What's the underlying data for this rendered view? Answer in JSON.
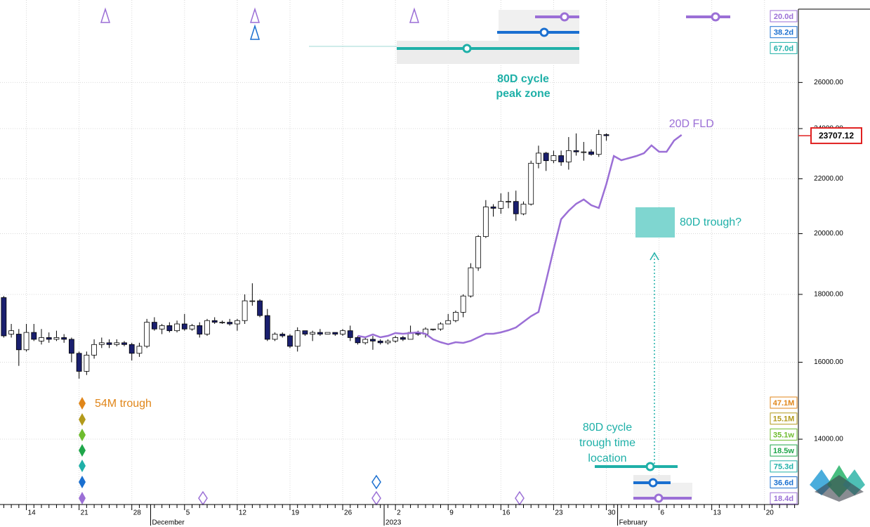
{
  "chart_data": {
    "type": "candlestick",
    "categories": [
      null,
      null,
      null,
      "14",
      null,
      null,
      null,
      null,
      null,
      null,
      "21",
      null,
      null,
      null,
      null,
      null,
      null,
      "28",
      null,
      null,
      null,
      null,
      null,
      null,
      "5",
      null,
      null,
      null,
      null,
      null,
      null,
      "12",
      null,
      null,
      null,
      null,
      null,
      null,
      "19",
      null,
      null,
      null,
      null,
      null,
      null,
      "26",
      null,
      null,
      null,
      null,
      null,
      null,
      "2",
      null,
      null,
      null,
      null,
      null,
      null,
      "9",
      null,
      null,
      null,
      null,
      null,
      null,
      "16",
      null,
      null,
      null,
      null,
      null,
      null,
      "23",
      null,
      null,
      null,
      null,
      null,
      null,
      "30",
      null,
      null,
      null,
      null,
      null,
      null,
      "6",
      null,
      null,
      null,
      null,
      null,
      null,
      "13",
      null,
      null,
      null,
      null,
      null,
      null,
      "20",
      null,
      null,
      null,
      null
    ],
    "period_labels": [
      null,
      null,
      null,
      null,
      null,
      null,
      null,
      null,
      null,
      null,
      null,
      null,
      null,
      null,
      null,
      null,
      null,
      null,
      null,
      null,
      "December",
      null,
      null,
      null,
      null,
      null,
      null,
      null,
      null,
      null,
      null,
      null,
      null,
      null,
      null,
      null,
      null,
      null,
      null,
      null,
      null,
      null,
      null,
      null,
      null,
      null,
      null,
      null,
      null,
      null,
      null,
      "2023",
      null,
      null,
      null,
      null,
      null,
      null,
      null,
      null,
      null,
      null,
      null,
      null,
      null,
      null,
      null,
      null,
      null,
      null,
      null,
      null,
      null,
      null,
      null,
      null,
      null,
      null,
      null,
      null,
      null,
      null,
      "February",
      null,
      null,
      null,
      null,
      null,
      null,
      null,
      null,
      null,
      null,
      null,
      null,
      null,
      null,
      null,
      null,
      null,
      null,
      null,
      null,
      null,
      null,
      null
    ],
    "open": [
      17900,
      16800,
      16800,
      16350,
      16850,
      16600,
      16700,
      16650,
      16700,
      16650,
      16250,
      15750,
      16200,
      16500,
      16550,
      16500,
      16550,
      16500,
      16250,
      16450,
      17150,
      16950,
      17050,
      16900,
      17100,
      16950,
      17050,
      16800,
      17200,
      17150,
      17150,
      17100,
      17200,
      17800,
      17800,
      17350,
      16650,
      16800,
      16750,
      16450,
      16900,
      16800,
      16850,
      16800,
      16850,
      16800,
      16900,
      16700,
      16550,
      16650,
      16600,
      16550,
      16600,
      16700,
      16650,
      16850,
      16800,
      16950,
      16950,
      17100,
      17200,
      17450,
      17950,
      18850,
      19900,
      20950,
      20900,
      21150,
      21150,
      20700,
      21050,
      22600,
      23000,
      22700,
      22900,
      22650,
      23100,
      23050,
      23050,
      22950,
      23750,
      null,
      null,
      null,
      null,
      null,
      null,
      null,
      null,
      null,
      null,
      null,
      null,
      null,
      null,
      null,
      null,
      null,
      null,
      null,
      null,
      null,
      null,
      null,
      null,
      null
    ],
    "high": [
      17950,
      17100,
      16950,
      17100,
      17100,
      16950,
      16850,
      16900,
      16800,
      16700,
      16300,
      16300,
      16650,
      16700,
      16650,
      16650,
      16600,
      16550,
      16550,
      17250,
      17300,
      17100,
      17150,
      17200,
      17400,
      17100,
      17150,
      17250,
      17300,
      17200,
      17250,
      17250,
      18000,
      18350,
      17850,
      17550,
      16850,
      16850,
      16800,
      17000,
      16900,
      16900,
      16950,
      16850,
      16850,
      16950,
      17050,
      16750,
      16700,
      16750,
      16650,
      16650,
      16750,
      16750,
      17050,
      16900,
      17000,
      16950,
      17150,
      17400,
      17500,
      18000,
      19000,
      19950,
      21200,
      21050,
      21450,
      21500,
      21550,
      21150,
      22700,
      23300,
      23050,
      23100,
      23100,
      23650,
      23800,
      23450,
      23150,
      23950,
      23800,
      null,
      null,
      null,
      null,
      null,
      null,
      null,
      null,
      null,
      null,
      null,
      null,
      null,
      null,
      null,
      null,
      null,
      null,
      null,
      null,
      null,
      null,
      null,
      null,
      null
    ],
    "low": [
      16700,
      16700,
      15900,
      16300,
      16600,
      16500,
      16550,
      16600,
      16550,
      16000,
      15550,
      15650,
      16100,
      16400,
      16400,
      16450,
      16450,
      16050,
      16150,
      16400,
      16900,
      16800,
      16850,
      16850,
      16900,
      16900,
      16700,
      16750,
      17100,
      17100,
      17050,
      16900,
      17100,
      17650,
      17300,
      16600,
      16600,
      16700,
      16400,
      16300,
      16750,
      16600,
      16750,
      16800,
      16750,
      16750,
      16600,
      16500,
      16500,
      16350,
      16500,
      16500,
      16550,
      16600,
      16650,
      16750,
      16700,
      16900,
      16900,
      17100,
      17150,
      17300,
      17900,
      18750,
      19850,
      20600,
      20700,
      20900,
      20450,
      20650,
      21000,
      22400,
      22300,
      22600,
      22500,
      22350,
      22900,
      22700,
      22900,
      22850,
      23500,
      null,
      null,
      null,
      null,
      null,
      null,
      null,
      null,
      null,
      null,
      null,
      null,
      null,
      null,
      null,
      null,
      null,
      null,
      null,
      null,
      null,
      null,
      null,
      null,
      null
    ],
    "close": [
      16750,
      16900,
      16350,
      16850,
      16650,
      16700,
      16650,
      16700,
      16650,
      16250,
      15750,
      16200,
      16500,
      16550,
      16500,
      16550,
      16500,
      16250,
      16450,
      17150,
      16950,
      17050,
      16900,
      17100,
      16950,
      17050,
      16800,
      17200,
      17150,
      17150,
      17100,
      17200,
      17800,
      17800,
      17350,
      16650,
      16800,
      16750,
      16450,
      16900,
      16800,
      16850,
      16800,
      16850,
      16800,
      16900,
      16700,
      16550,
      16650,
      16600,
      16550,
      16600,
      16700,
      16650,
      16850,
      16800,
      16950,
      16950,
      17100,
      17200,
      17450,
      17950,
      18850,
      19900,
      20950,
      20900,
      21150,
      21150,
      20700,
      21050,
      22600,
      23000,
      22700,
      22900,
      22650,
      23100,
      23050,
      23050,
      22950,
      23750,
      23707.12,
      null,
      null,
      null,
      null,
      null,
      null,
      null,
      null,
      null,
      null,
      null,
      null,
      null,
      null,
      null,
      null,
      null,
      null,
      null,
      null,
      null,
      null,
      null,
      null,
      null
    ],
    "up_color": "#ffffff",
    "down_color": "#1a1f6e",
    "series": [
      {
        "name": "20D FLD",
        "color": "#9b6fd6",
        "values": [
          null,
          null,
          null,
          null,
          null,
          null,
          null,
          null,
          null,
          null,
          null,
          null,
          null,
          null,
          null,
          null,
          null,
          null,
          null,
          null,
          null,
          null,
          null,
          null,
          null,
          null,
          null,
          null,
          null,
          null,
          null,
          null,
          null,
          null,
          null,
          null,
          null,
          null,
          null,
          null,
          null,
          null,
          null,
          null,
          null,
          null,
          null,
          16750,
          16708,
          16790,
          16708,
          16750,
          16831,
          16810,
          16831,
          16852,
          16810,
          16647,
          16566,
          16506,
          16566,
          16546,
          16605,
          16708,
          16810,
          16810,
          16852,
          16914,
          16996,
          17163,
          17331,
          17458,
          18420,
          19460,
          20507,
          20810,
          21065,
          21221,
          21014,
          20911,
          21796,
          22886,
          22719,
          22802,
          22886,
          22998,
          23310,
          23054,
          23054,
          23508,
          23739,
          null,
          null,
          null,
          null,
          null,
          null,
          null,
          null,
          null,
          null,
          null,
          null,
          null,
          null,
          null
        ]
      }
    ],
    "log": true,
    "ylim": [
      12500,
      30000
    ],
    "yticks": [
      {
        "value": 14000,
        "label": "14000.00"
      },
      {
        "value": 16000,
        "label": "16000.00"
      },
      {
        "value": 18000,
        "label": "18000.00"
      },
      {
        "value": 20000,
        "label": "20000.00"
      },
      {
        "value": 22000,
        "label": "22000.00"
      },
      {
        "value": 24000,
        "label": "24000.00"
      },
      {
        "value": 26000,
        "label": "26000.00"
      }
    ],
    "grid": true,
    "annotations": {
      "peak_zone": [
        "80D cycle",
        "peak zone"
      ],
      "trough_54m": "54M trough",
      "trough_80d": "80D trough?",
      "trough_time": [
        "80D cycle",
        "trough time",
        "location"
      ]
    },
    "cycle_labels_top": [
      {
        "label": "20.0d",
        "color": "#9b6fd6"
      },
      {
        "label": "38.2d",
        "color": "#1a6fd0"
      },
      {
        "label": "67.0d",
        "color": "#1fb0a8"
      }
    ],
    "cycle_labels_bottom": [
      {
        "label": "47.1M",
        "color": "#e0861a"
      },
      {
        "label": "15.1M",
        "color": "#b39a1c"
      },
      {
        "label": "35.1w",
        "color": "#6ebc2e"
      },
      {
        "label": "18.5w",
        "color": "#1fa64a"
      },
      {
        "label": "75.3d",
        "color": "#1fb0a8"
      },
      {
        "label": "36.6d",
        "color": "#1a6fd0"
      },
      {
        "label": "18.4d",
        "color": "#9b6fd6"
      }
    ]
  }
}
